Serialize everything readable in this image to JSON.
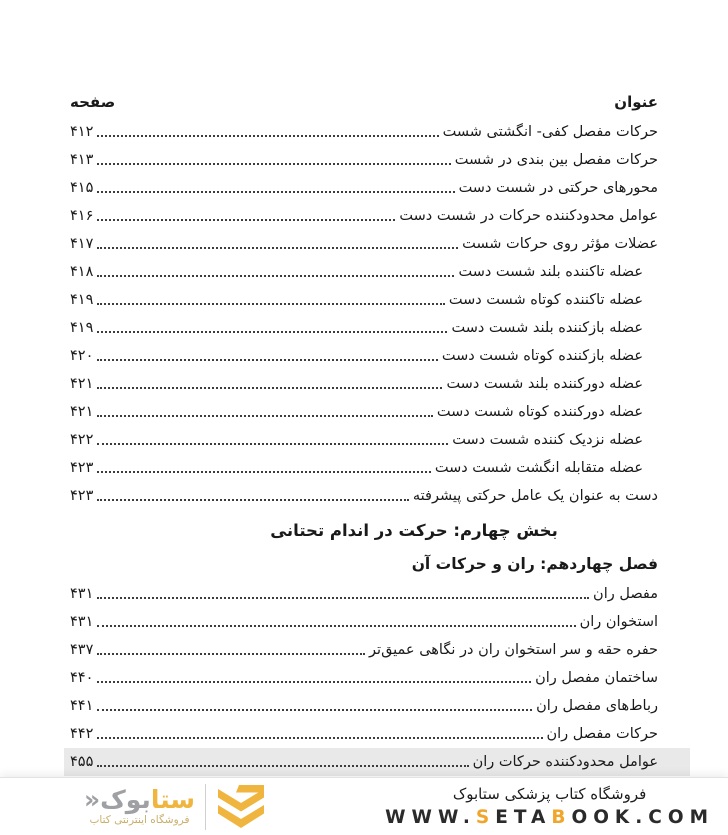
{
  "toc": {
    "header": {
      "title_label": "عنوان",
      "page_label": "صفحه"
    },
    "rows_part1": [
      {
        "title": "حرکات مفصل کفی- انگشتی شست",
        "page": "۴۱۲",
        "indent": false
      },
      {
        "title": "حرکات مفصل بین بندی در شست",
        "page": "۴۱۳",
        "indent": false
      },
      {
        "title": "محورهای حرکتی در شست دست",
        "page": "۴۱۵",
        "indent": false
      },
      {
        "title": "عوامل محدودکننده حرکات در شست دست",
        "page": "۴۱۶",
        "indent": false
      },
      {
        "title": "عضلات مؤثر روی حرکات شست",
        "page": "۴۱۷",
        "indent": false
      },
      {
        "title": "عضله تاکننده بلند شست دست",
        "page": "۴۱۸",
        "indent": true
      },
      {
        "title": "عضله تاکننده کوتاه شست دست",
        "page": "۴۱۹",
        "indent": true
      },
      {
        "title": "عضله بازکننده بلند شست دست",
        "page": "۴۱۹",
        "indent": true
      },
      {
        "title": "عضله بازکننده کوتاه شست دست",
        "page": "۴۲۰",
        "indent": true
      },
      {
        "title": "عضله دورکننده بلند شست دست",
        "page": "۴۲۱",
        "indent": true
      },
      {
        "title": "عضله دورکننده کوتاه شست دست",
        "page": "۴۲۱",
        "indent": true
      },
      {
        "title": "عضله نزدیک کننده شست دست",
        "page": "۴۲۲",
        "indent": true
      },
      {
        "title": "عضله متقابله انگشت شست دست",
        "page": "۴۲۳",
        "indent": true
      },
      {
        "title": "دست به عنوان یک عامل حرکتی پیشرفته",
        "page": "۴۲۳",
        "indent": false
      }
    ],
    "part_header": "بخش چهارم: حرکت در اندام تحتانی",
    "chapter_header": "فصل چهاردهم: ران و حرکات آن",
    "rows_part2": [
      {
        "title": "مفصل ران",
        "page": "۴۳۱",
        "indent": false
      },
      {
        "title": "استخوان ران",
        "page": "۴۳۱",
        "indent": false
      },
      {
        "title": "حفره حقه و سر استخوان ران در نگاهی عمیق‌تر",
        "page": "۴۳۷",
        "indent": false
      },
      {
        "title": "ساختمان مفصل ران",
        "page": "۴۴۰",
        "indent": false
      },
      {
        "title": "رباط‌های مفصل ران",
        "page": "۴۴۱",
        "indent": false
      },
      {
        "title": "حرکات مفصل ران",
        "page": "۴۴۲",
        "indent": false
      },
      {
        "title": "عوامل محدودکننده حرکات ران",
        "page": "۴۵۵",
        "indent": false,
        "highlight": true
      }
    ]
  },
  "footer": {
    "store_name": "فروشگاه کتاب پزشکی ستابوک",
    "url_segments": [
      {
        "text": "WWW.",
        "accent": false
      },
      {
        "text": "S",
        "accent": true
      },
      {
        "text": "ETA",
        "accent": false
      },
      {
        "text": "B",
        "accent": true
      },
      {
        "text": "OOK.COM",
        "accent": false
      }
    ],
    "logo": {
      "wordmark_yellow": "ستا",
      "wordmark_gray": "بوک",
      "guillemet": "«",
      "subtitle": "فروشگاه اینترنتی کتاب",
      "emblem_icon": "double-chevron-icon"
    },
    "colors": {
      "accent_yellow": "#F0B53E",
      "accent_orange": "#F0A62B",
      "logo_gray": "#9EA0A3",
      "subtitle_gold": "#C9AF6B",
      "highlight_gray": "#E9E9E9"
    }
  }
}
